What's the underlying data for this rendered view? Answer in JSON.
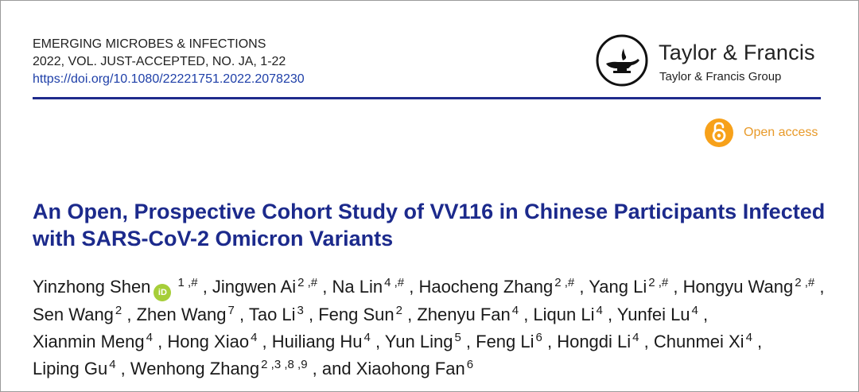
{
  "journal": {
    "name": "EMERGING MICROBES & INFECTIONS",
    "issue": "2022, VOL. JUST-ACCEPTED, NO. JA, 1-22",
    "doi": "https://doi.org/10.1080/22221751.2022.2078230"
  },
  "publisher": {
    "name": "Taylor & Francis",
    "group": "Taylor & Francis Group",
    "logo_icon": "oil-lamp-icon"
  },
  "open_access": {
    "label": "Open access",
    "icon": "open-lock-icon",
    "color": "#f7a11a"
  },
  "title": "An Open, Prospective Cohort Study of VV116 in Chinese Participants Infected with SARS-CoV-2 Omicron Variants",
  "authors": [
    {
      "name": "Yinzhong Shen",
      "orcid": true,
      "sup": "1 ,#"
    },
    {
      "name": "Jingwen Ai",
      "sup": "2 ,#"
    },
    {
      "name": "Na Lin",
      "sup": "4 ,#"
    },
    {
      "name": "Haocheng Zhang",
      "sup": "2 ,#"
    },
    {
      "name": "Yang Li",
      "sup": "2 ,#"
    },
    {
      "name": "Hongyu Wang",
      "sup": "2 ,#"
    },
    {
      "name": "Sen Wang",
      "sup": "2"
    },
    {
      "name": "Zhen Wang",
      "sup": "7"
    },
    {
      "name": "Tao Li",
      "sup": "3"
    },
    {
      "name": "Feng Sun",
      "sup": "2"
    },
    {
      "name": "Zhenyu Fan",
      "sup": "4"
    },
    {
      "name": "Liqun Li",
      "sup": "4"
    },
    {
      "name": "Yunfei Lu",
      "sup": "4"
    },
    {
      "name": "Xianmin Meng",
      "sup": "4"
    },
    {
      "name": "Hong Xiao",
      "sup": "4"
    },
    {
      "name": "Huiliang Hu",
      "sup": "4"
    },
    {
      "name": "Yun Ling",
      "sup": "5"
    },
    {
      "name": "Feng Li",
      "sup": "6"
    },
    {
      "name": "Hongdi Li",
      "sup": "4"
    },
    {
      "name": "Chunmei Xi",
      "sup": "4"
    },
    {
      "name": "Liping Gu",
      "sup": "4"
    },
    {
      "name": "Wenhong Zhang",
      "sup": "2 ,3 ,8 ,9"
    },
    {
      "name": "Xiaohong Fan",
      "sup": "6"
    }
  ],
  "authors_conjunction": "and",
  "orcid_label": "iD",
  "colors": {
    "title": "#1c2a8c",
    "rule": "#1f2b8c",
    "doi": "#1e3fa8",
    "orcid": "#a6ce39"
  }
}
